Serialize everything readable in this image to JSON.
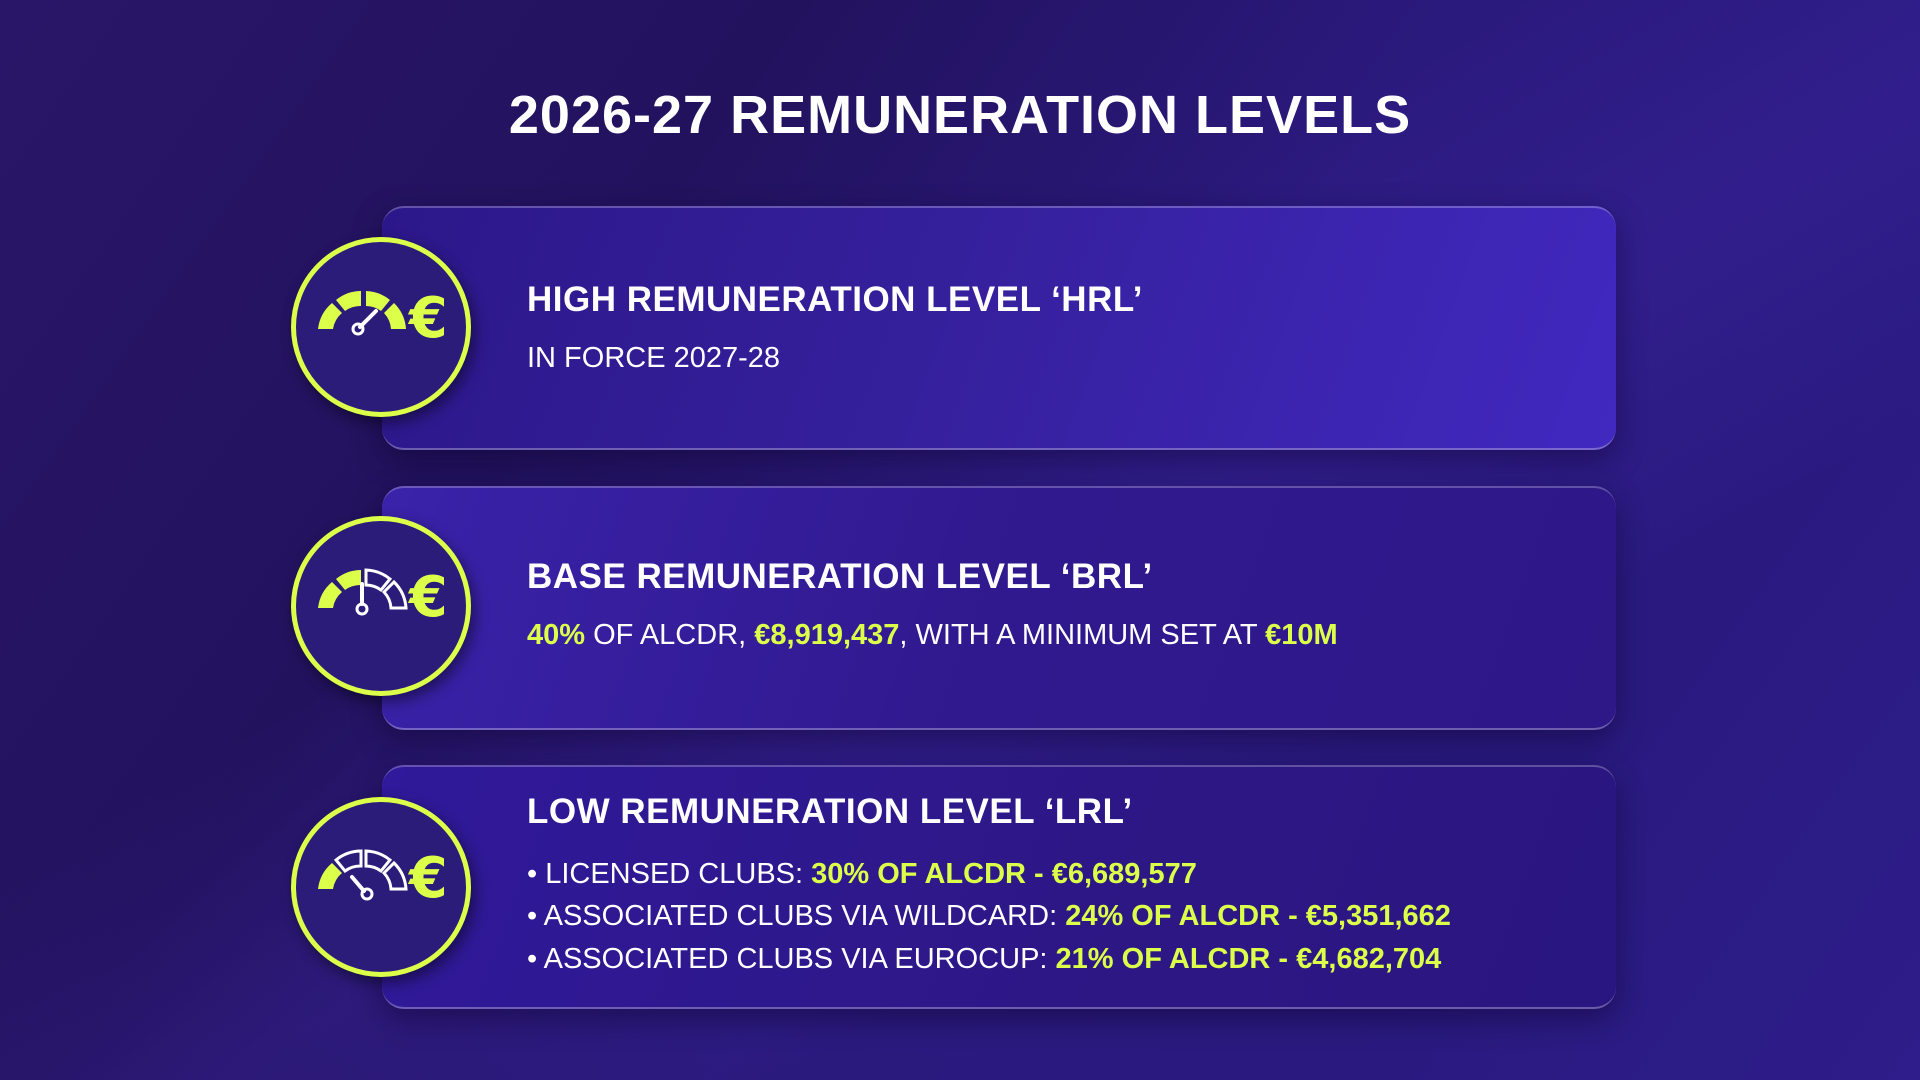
{
  "title": "2026-27 REMUNERATION LEVELS",
  "colors": {
    "accent": "#dcff4a",
    "background": "#2a1670"
  },
  "levels": [
    {
      "heading": "HIGH REMUNERATION LEVEL ‘HRL’",
      "icon": "gauge-high-euro-icon",
      "text": "IN FORCE 2027-28"
    },
    {
      "heading": "BASE REMUNERATION LEVEL ‘BRL’",
      "icon": "gauge-medium-euro-icon",
      "parts": {
        "p1": "40%",
        "p2": " OF ALCDR, ",
        "p3": "€8,919,437",
        "p4": ", WITH A MINIMUM SET AT ",
        "p5": "€10M"
      }
    },
    {
      "heading": "LOW REMUNERATION LEVEL ‘LRL’",
      "icon": "gauge-low-euro-icon",
      "items": [
        {
          "label": "• LICENSED CLUBS: ",
          "value": "30% OF ALCDR - €6,689,577"
        },
        {
          "label": "• ASSOCIATED CLUBS VIA WILDCARD: ",
          "value": "24% OF ALCDR - €5,351,662"
        },
        {
          "label": "• ASSOCIATED CLUBS VIA EUROCUP: ",
          "value": "21% OF ALCDR - €4,682,704"
        }
      ]
    }
  ]
}
